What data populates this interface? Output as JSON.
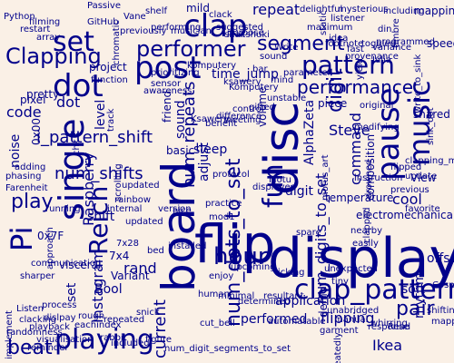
{
  "colors": {
    "background": "#FAF0E6",
    "word": "#00008B"
  },
  "words": [
    {
      "text": "display"
    },
    {
      "text": "board"
    },
    {
      "text": "flip"
    },
    {
      "text": "disc"
    },
    {
      "text": "clap_pattern"
    },
    {
      "text": "single"
    },
    {
      "text": "post"
    },
    {
      "text": "pattern"
    },
    {
      "text": "performer"
    },
    {
      "text": "clap"
    },
    {
      "text": "set"
    },
    {
      "text": "dot"
    },
    {
      "text": "fun"
    },
    {
      "text": "Reich"
    },
    {
      "text": "Pi"
    },
    {
      "text": "playing"
    },
    {
      "text": "pause"
    },
    {
      "text": "music"
    },
    {
      "text": "hour"
    },
    {
      "text": "Clapping"
    },
    {
      "text": "play"
    },
    {
      "text": "beat"
    },
    {
      "text": "pair"
    },
    {
      "text": "digit"
    },
    {
      "text": "segment"
    },
    {
      "text": "performance"
    },
    {
      "text": "num_dots_to_set"
    },
    {
      "text": "num_repeats"
    },
    {
      "text": "i_pattern_shift"
    },
    {
      "text": "num_shifts"
    },
    {
      "text": "num_digits_to_set"
    },
    {
      "text": "Raspberry"
    },
    {
      "text": "Instagram"
    },
    {
      "text": "current"
    },
    {
      "text": "shift"
    },
    {
      "text": "Ikea"
    },
    {
      "text": "repeat"
    },
    {
      "text": "mild"
    },
    {
      "text": "Python"
    },
    {
      "text": "Steve"
    },
    {
      "text": "command"
    },
    {
      "text": "mapping"
    },
    {
      "text": "speed"
    },
    {
      "text": "AlphaZeta"
    },
    {
      "text": "electromechanical"
    },
    {
      "text": "flipping"
    },
    {
      "text": "performed"
    },
    {
      "text": "application"
    },
    {
      "text": "demo"
    },
    {
      "text": "cool"
    },
    {
      "text": "code"
    },
    {
      "text": "pixel"
    },
    {
      "text": "noise"
    },
    {
      "text": "volume"
    },
    {
      "text": "time_jump"
    },
    {
      "text": "dot"
    },
    {
      "text": "rand"
    },
    {
      "text": "Bool"
    },
    {
      "text": "0x7F"
    },
    {
      "text": "Variant"
    },
    {
      "text": "7x4"
    },
    {
      "text": "7x28"
    },
    {
      "text": "set"
    },
    {
      "text": "visceral"
    },
    {
      "text": "temperature"
    },
    {
      "text": "clapped"
    },
    {
      "text": "composition"
    },
    {
      "text": "View"
    },
    {
      "text": "digit"
    },
    {
      "text": "level"
    },
    {
      "text": "0x00"
    },
    {
      "text": "pretty"
    },
    {
      "text": "project"
    },
    {
      "text": "adjust"
    },
    {
      "text": "sleep"
    },
    {
      "text": "basic"
    },
    {
      "text": "friend"
    },
    {
      "text": "sound"
    },
    {
      "text": "piece"
    },
    {
      "text": "fast"
    },
    {
      "text": "Komputery"
    },
    {
      "text": "Ksawery"
    },
    {
      "text": "Farenheit"
    },
    {
      "text": "chk"
    },
    {
      "text": "approach"
    },
    {
      "text": "rhythm"
    },
    {
      "text": "offset"
    },
    {
      "text": "soft"
    },
    {
      "text": "shared"
    },
    {
      "text": "clapping_music"
    },
    {
      "text": "installed"
    },
    {
      "text": "updated"
    },
    {
      "text": "mod1"
    },
    {
      "text": "upcoming"
    },
    {
      "text": "spare"
    },
    {
      "text": "nearby"
    },
    {
      "text": "easily"
    },
    {
      "text": "unexpected"
    },
    {
      "text": "manual"
    },
    {
      "text": "repeatedly"
    },
    {
      "text": "response"
    },
    {
      "text": "unabridged"
    },
    {
      "text": "whirring"
    },
    {
      "text": "tiny"
    },
    {
      "text": "minimal"
    },
    {
      "text": "human"
    },
    {
      "text": "cut_bell"
    },
    {
      "text": "num_digit_segments_to_set"
    },
    {
      "text": "visualisation"
    },
    {
      "text": "randomness"
    },
    {
      "text": "implement"
    },
    {
      "text": "playback"
    },
    {
      "text": "Listen"
    },
    {
      "text": "dislpay"
    },
    {
      "text": "reminder"
    },
    {
      "text": "clacking"
    },
    {
      "text": "rabbit"
    },
    {
      "text": "repeated"
    },
    {
      "text": "included"
    },
    {
      "text": "eachindex"
    },
    {
      "text": "process"
    },
    {
      "text": "rough"
    },
    {
      "text": "sharper"
    },
    {
      "text": "communication"
    },
    {
      "text": "phasing"
    },
    {
      "text": "adding"
    },
    {
      "text": "running"
    },
    {
      "text": "internal"
    },
    {
      "text": "rainbow"
    },
    {
      "text": "updated"
    },
    {
      "text": "scrolling"
    },
    {
      "text": "track"
    },
    {
      "text": "version"
    },
    {
      "text": "practice"
    },
    {
      "text": "displayed"
    },
    {
      "text": "motus_art"
    },
    {
      "text": "Motu"
    },
    {
      "text": "bed"
    },
    {
      "text": "ticking"
    },
    {
      "text": "nice"
    },
    {
      "text": "protocol"
    },
    {
      "text": "drowned"
    },
    {
      "text": "flipped"
    },
    {
      "text": "update"
    },
    {
      "text": "previous"
    },
    {
      "text": "favorite"
    },
    {
      "text": "instruction"
    },
    {
      "text": "original"
    },
    {
      "text": "modifying"
    },
    {
      "text": "difference"
    },
    {
      "text": "benefit"
    },
    {
      "text": "meeting"
    },
    {
      "text": "control"
    },
    {
      "text": "gifted"
    },
    {
      "text": "unstable"
    },
    {
      "text": "ksawery"
    },
    {
      "text": "komputery"
    },
    {
      "text": "sensor"
    },
    {
      "text": "awareness"
    },
    {
      "text": "prioritizing"
    },
    {
      "text": "performing"
    },
    {
      "text": "musician"
    },
    {
      "text": "Vane"
    },
    {
      "text": "previously"
    },
    {
      "text": "shelf"
    },
    {
      "text": "chromatic"
    },
    {
      "text": "GitHub"
    },
    {
      "text": "Passive"
    },
    {
      "text": "filming"
    },
    {
      "text": "restart"
    },
    {
      "text": "array"
    },
    {
      "text": "function"
    },
    {
      "text": "clack"
    },
    {
      "text": "suggested"
    },
    {
      "text": "purpose"
    },
    {
      "text": "shakshuki"
    },
    {
      "text": "delightful"
    },
    {
      "text": "sound"
    },
    {
      "text": "Write"
    },
    {
      "text": "maximum"
    },
    {
      "text": "parameter"
    },
    {
      "text": "bar"
    },
    {
      "text": "mind"
    },
    {
      "text": "static"
    },
    {
      "text": "idea"
    },
    {
      "text": "footnote"
    },
    {
      "text": "listener"
    },
    {
      "text": "mysterious"
    },
    {
      "text": "yield"
    },
    {
      "text": "provenance"
    },
    {
      "text": "programmed"
    },
    {
      "text": "toggled"
    },
    {
      "text": "including"
    },
    {
      "text": "din"
    },
    {
      "text": "Julia"
    },
    {
      "text": "variance"
    },
    {
      "text": "timbre"
    },
    {
      "text": "write_to_sink"
    },
    {
      "text": "sink_dot"
    },
    {
      "text": "shifting"
    },
    {
      "text": "mapping"
    },
    {
      "text": "Cosmo"
    },
    {
      "text": "Read"
    },
    {
      "text": "garment"
    },
    {
      "text": "automatable"
    },
    {
      "text": "resultant"
    },
    {
      "text": "enjoy"
    },
    {
      "text": "determined"
    },
    {
      "text": "snick"
    },
    {
      "text": "figure"
    },
    {
      "text": "Julia"
    },
    {
      "text": "rhythm"
    },
    {
      "text": "create"
    },
    {
      "text": "noticeable"
    },
    {
      "text": "companion"
    },
    {
      "text": "agressive"
    },
    {
      "text": "creating"
    },
    {
      "text": "clap_desk_started"
    },
    {
      "text": "setup"
    },
    {
      "text": "effort"
    },
    {
      "text": "cleared"
    },
    {
      "text": "shown"
    },
    {
      "text": "tremulous"
    }
  ]
}
